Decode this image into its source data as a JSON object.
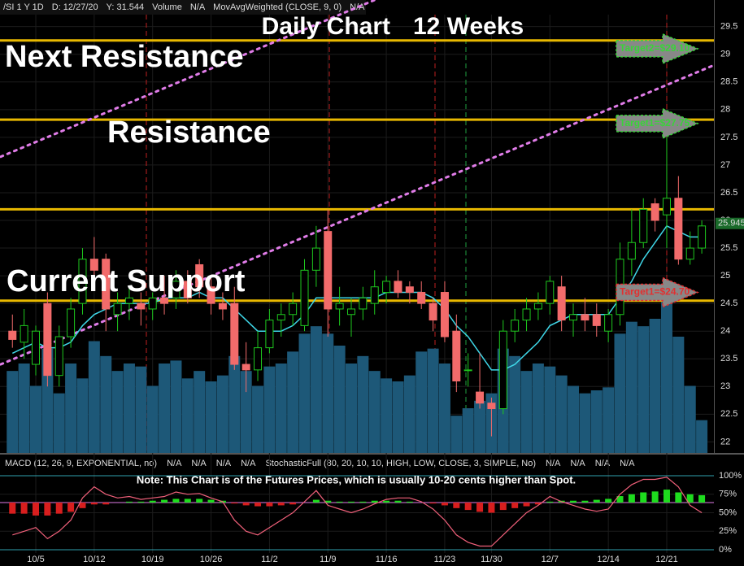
{
  "header": [
    "/SI 1 Y 1D",
    "D: 12/27/20",
    "Y: 31.544",
    "Volume",
    "N/A",
    "MovAvgWeighted (CLOSE, 9, 0)",
    "N/A"
  ],
  "chart_data": {
    "type": "candlestick",
    "title": "Daily Chart",
    "subtitle": "12 Weeks",
    "annotations": [
      "Next Resistance",
      "Resistance",
      "Current Support"
    ],
    "categories": [
      null,
      null,
      "10/5",
      null,
      null,
      null,
      null,
      "10/12",
      null,
      null,
      null,
      null,
      "10/19",
      null,
      null,
      null,
      null,
      "10/26",
      null,
      null,
      null,
      null,
      "11/2",
      null,
      null,
      null,
      null,
      "11/9",
      null,
      null,
      null,
      null,
      "11/16",
      null,
      null,
      null,
      null,
      "11/23",
      null,
      null,
      null,
      "11/30",
      null,
      null,
      null,
      null,
      "12/7",
      null,
      null,
      null,
      null,
      "12/14",
      null,
      null,
      null,
      null,
      "12/21",
      null,
      null,
      null
    ],
    "open": [
      24.0,
      23.8,
      23.4,
      24.5,
      23.2,
      23.9,
      24.5,
      25.3,
      25.3,
      24.3,
      24.5,
      24.5,
      24.4,
      24.6,
      24.6,
      24.9,
      25.2,
      24.8,
      24.5,
      24.5,
      23.4,
      23.3,
      23.7,
      24.2,
      24.3,
      24.1,
      25.1,
      25.8,
      24.4,
      24.3,
      24.4,
      24.5,
      24.7,
      24.9,
      24.8,
      24.7,
      24.5,
      24.7,
      24.0,
      23.3,
      22.9,
      22.7,
      22.6,
      24.0,
      24.2,
      24.4,
      24.5,
      24.8,
      24.2,
      24.3,
      24.3,
      24.0,
      24.3,
      25.3,
      25.6,
      26.3,
      26.1,
      26.4,
      25.3,
      25.5
    ],
    "high": [
      24.3,
      24.4,
      24.1,
      24.7,
      24.1,
      24.6,
      25.5,
      25.7,
      25.4,
      24.7,
      24.8,
      24.7,
      24.7,
      25.0,
      25.1,
      25.1,
      25.3,
      25.0,
      24.7,
      24.8,
      23.8,
      24.0,
      24.4,
      24.5,
      24.7,
      25.3,
      25.9,
      26.2,
      24.8,
      24.6,
      24.8,
      25.1,
      25.0,
      25.1,
      24.9,
      24.9,
      24.6,
      24.9,
      24.3,
      23.6,
      23.6,
      22.8,
      24.2,
      24.4,
      24.6,
      24.7,
      25.0,
      25.0,
      24.5,
      24.6,
      24.5,
      24.4,
      25.6,
      26.2,
      26.4,
      26.4,
      27.5,
      26.8,
      25.8,
      26.0
    ],
    "low": [
      23.7,
      23.5,
      23.2,
      23.0,
      23.0,
      23.7,
      24.3,
      24.8,
      24.0,
      24.0,
      24.2,
      24.1,
      24.2,
      24.3,
      24.4,
      24.5,
      24.6,
      24.3,
      24.2,
      23.3,
      22.9,
      23.1,
      23.6,
      23.9,
      24.1,
      24.0,
      24.8,
      23.9,
      24.1,
      23.9,
      24.2,
      24.3,
      24.5,
      24.6,
      24.5,
      24.4,
      24.0,
      23.8,
      22.9,
      23.0,
      22.6,
      22.1,
      22.5,
      23.8,
      24.0,
      24.2,
      24.3,
      24.0,
      23.9,
      24.0,
      23.9,
      23.8,
      24.1,
      25.0,
      25.5,
      25.8,
      25.5,
      25.2,
      25.2,
      25.4
    ],
    "close": [
      23.85,
      24.1,
      24.0,
      23.2,
      23.9,
      24.4,
      25.3,
      25.1,
      24.4,
      24.5,
      24.6,
      24.4,
      24.6,
      24.5,
      24.9,
      24.6,
      24.8,
      24.5,
      24.4,
      23.4,
      23.3,
      23.7,
      24.2,
      24.3,
      24.5,
      25.1,
      25.5,
      24.4,
      24.5,
      24.4,
      24.6,
      24.8,
      24.9,
      24.7,
      24.7,
      24.5,
      24.2,
      23.9,
      23.1,
      23.3,
      22.7,
      22.6,
      24.0,
      24.2,
      24.4,
      24.5,
      24.9,
      24.2,
      24.3,
      24.2,
      24.1,
      24.3,
      25.3,
      25.6,
      26.2,
      26.0,
      26.4,
      25.3,
      25.5,
      25.9
    ],
    "up_color": "#1ec81e",
    "down_color": "#f26b6b",
    "volume": [
      55,
      60,
      45,
      70,
      40,
      60,
      50,
      75,
      65,
      55,
      60,
      58,
      45,
      60,
      62,
      50,
      55,
      48,
      52,
      65,
      55,
      45,
      58,
      60,
      68,
      80,
      85,
      80,
      72,
      60,
      65,
      55,
      50,
      48,
      52,
      68,
      70,
      60,
      25,
      30,
      35,
      40,
      70,
      65,
      55,
      60,
      58,
      52,
      45,
      40,
      42,
      44,
      80,
      88,
      85,
      90,
      110,
      78,
      45,
      22
    ],
    "volume_color": "#1d5878",
    "vlim": [
      0,
      120
    ],
    "wma": [
      23.6,
      23.7,
      23.8,
      23.7,
      23.7,
      23.8,
      24.1,
      24.3,
      24.4,
      24.5,
      24.5,
      24.5,
      24.5,
      24.6,
      24.6,
      24.6,
      24.7,
      24.6,
      24.6,
      24.4,
      24.2,
      24.0,
      24.0,
      24.0,
      24.1,
      24.3,
      24.6,
      24.6,
      24.6,
      24.6,
      24.6,
      24.6,
      24.7,
      24.7,
      24.7,
      24.7,
      24.6,
      24.4,
      24.1,
      23.9,
      23.6,
      23.3,
      23.3,
      23.4,
      23.6,
      23.8,
      24.1,
      24.2,
      24.3,
      24.3,
      24.3,
      24.3,
      24.6,
      24.9,
      25.3,
      25.6,
      25.9,
      25.8,
      25.7,
      25.7
    ],
    "wma_color": "#3fd7e8",
    "last_price": {
      "value": 25.945,
      "label": "25.945"
    },
    "levels": [
      29.25,
      27.82,
      26.2,
      24.55
    ],
    "level_color": "#e8b800",
    "trendlines": [
      [
        [
          -1,
          27.15
        ],
        [
          31,
          29.98
        ]
      ],
      [
        [
          -1,
          23.4
        ],
        [
          60,
          28.8
        ]
      ]
    ],
    "trend_color": "#e07ce8",
    "targets": [
      {
        "label": "Target2=$29.10",
        "value": 29.1,
        "color": "#39d339"
      },
      {
        "label": "Target1=$27.75",
        "value": 27.75,
        "color": "#39d339"
      },
      {
        "label": "Target1=$24.70",
        "value": 24.7,
        "color": "#e23030"
      }
    ],
    "ylim": [
      21.8,
      29.98
    ],
    "yticks": [
      22,
      22.5,
      23,
      23.5,
      24,
      24.5,
      25,
      25.5,
      26,
      26.5,
      27,
      27.5,
      28,
      28.5,
      29,
      29.5
    ]
  },
  "lower": {
    "labels": [
      "MACD (12, 26, 9, EXPONENTIAL, no)",
      "N/A",
      "N/A",
      "N/A",
      "N/A",
      "StochasticFull (80, 20, 10, 10, HIGH, LOW, CLOSE, 3, SIMPLE, No)",
      "N/A",
      "N/A",
      "N/A",
      "N/A"
    ],
    "note": "Note: This Chart is of the Futures Prices, which is usually 10-20 cents higher than Spot.",
    "histogram": [
      -0.6,
      -0.6,
      -0.7,
      -0.7,
      -0.6,
      -0.5,
      -0.3,
      -0.1,
      -0.1,
      0.0,
      0.05,
      0.05,
      0.1,
      0.15,
      0.2,
      0.2,
      0.2,
      0.15,
      0.1,
      -0.05,
      -0.15,
      -0.2,
      -0.2,
      -0.15,
      -0.1,
      0.0,
      0.15,
      0.1,
      0.05,
      0.05,
      0.05,
      0.1,
      0.1,
      0.1,
      0.05,
      0.0,
      -0.05,
      -0.15,
      -0.3,
      -0.4,
      -0.5,
      -0.55,
      -0.4,
      -0.3,
      -0.2,
      -0.1,
      0.05,
      0.1,
      0.1,
      0.1,
      0.15,
      0.2,
      0.35,
      0.45,
      0.55,
      0.6,
      0.7,
      0.55,
      0.45,
      0.4
    ],
    "hlim": [
      -2,
      2
    ],
    "hist_up": "#1edc1e",
    "hist_down": "#d81e1e",
    "stoch": [
      20,
      25,
      30,
      15,
      25,
      40,
      70,
      85,
      75,
      70,
      72,
      68,
      70,
      72,
      78,
      75,
      76,
      70,
      65,
      40,
      25,
      20,
      30,
      40,
      50,
      65,
      80,
      60,
      55,
      50,
      55,
      62,
      68,
      70,
      70,
      65,
      55,
      40,
      20,
      10,
      5,
      5,
      20,
      35,
      50,
      60,
      72,
      65,
      60,
      55,
      52,
      55,
      75,
      88,
      95,
      95,
      98,
      85,
      60,
      50
    ],
    "stoch_color": "#f0607a",
    "ylim": [
      0,
      100
    ],
    "yticks": [
      {
        "value": 0,
        "label": "0%"
      },
      {
        "value": 25,
        "label": "25%"
      },
      {
        "value": 50,
        "label": "50%"
      },
      {
        "value": 75,
        "label": "75%"
      },
      {
        "value": 100,
        "label": "100%"
      }
    ]
  }
}
